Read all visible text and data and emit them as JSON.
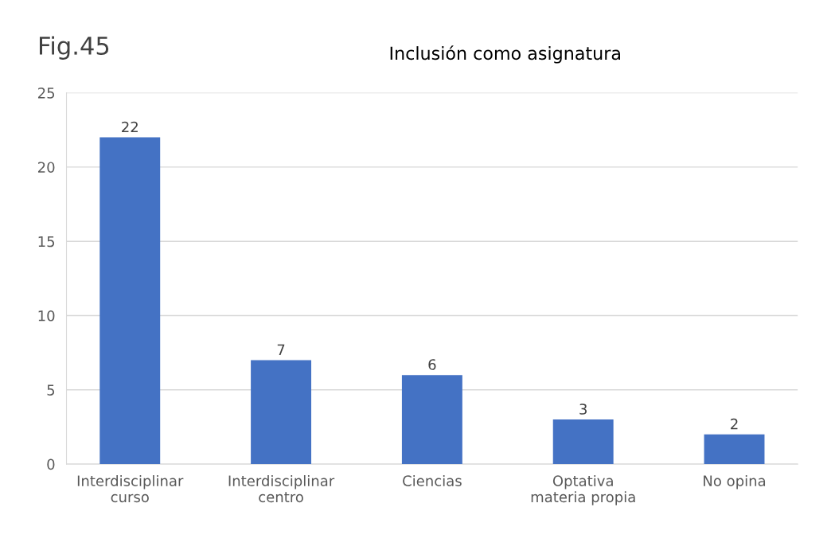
{
  "chart_data": {
    "type": "bar",
    "title": "Inclusión como asignatura",
    "annotations": [
      "Fig.45"
    ],
    "categories": [
      "Interdisciplinar\ncurso",
      "Interdisciplinar\ncentro",
      "Ciencias",
      "Optativa\nmateria propia",
      "No opina"
    ],
    "values": [
      22,
      7,
      6,
      3,
      2
    ],
    "color": "#4472c4",
    "ylim": [
      0,
      25
    ],
    "yticks": [
      0,
      5,
      10,
      15,
      20,
      25
    ],
    "grid": "y",
    "data_labels": true
  }
}
